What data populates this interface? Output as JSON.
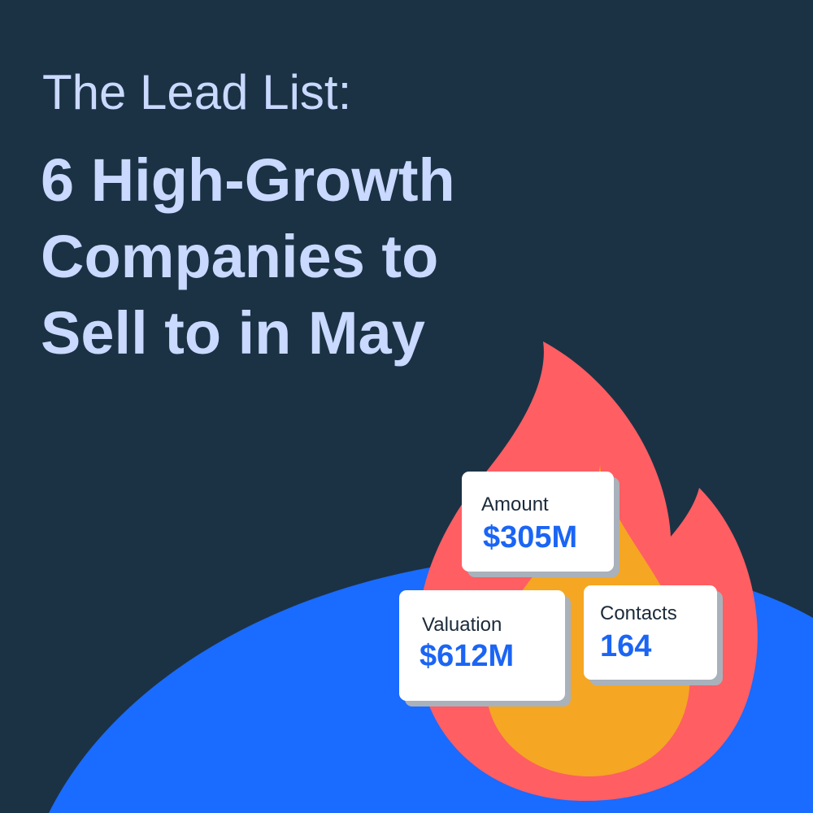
{
  "headline": {
    "subtitle": "The Lead List:",
    "title_lines": [
      "6 High-Growth",
      "Companies to",
      "Sell to in May"
    ]
  },
  "cards": {
    "amount": {
      "label": "Amount",
      "value": "$305M"
    },
    "valuation": {
      "label": "Valuation",
      "value": "$612M"
    },
    "contacts": {
      "label": "Contacts",
      "value": "164"
    }
  },
  "colors": {
    "background": "#1b3244",
    "headline_text": "#c9d9ff",
    "blue_shape": "#1a6bff",
    "flame_outer": "#ff5e63",
    "flame_inner": "#f5a623",
    "card_value": "#1b65f5"
  },
  "icons": [
    "flame-icon"
  ]
}
